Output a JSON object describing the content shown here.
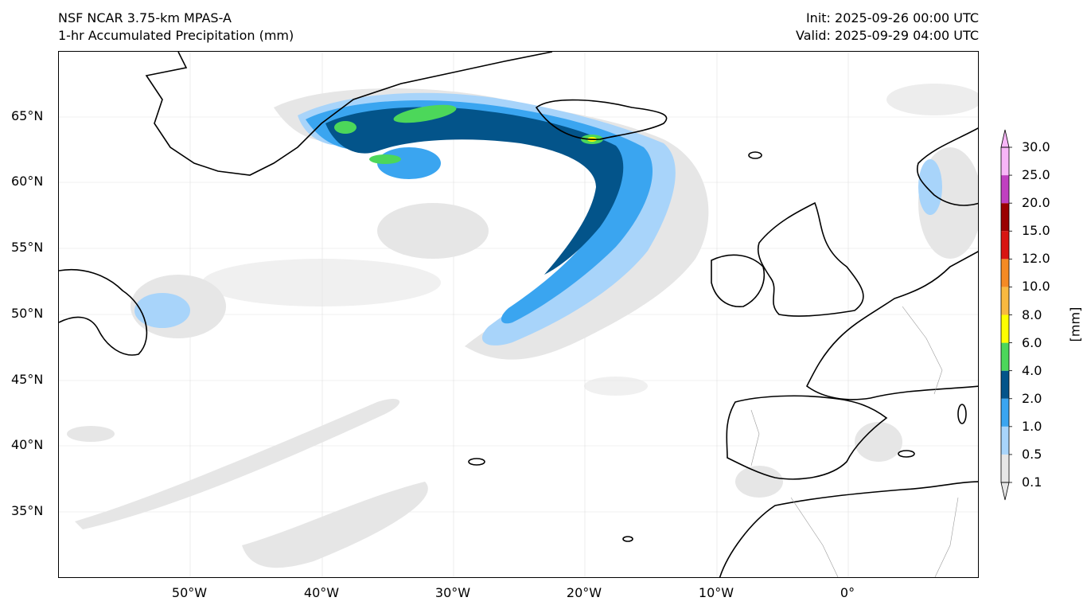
{
  "header": {
    "model": "NSF NCAR 3.75-km MPAS-A",
    "field": "1-hr Accumulated Precipitation (mm)",
    "init": "Init: 2025-09-26 00:00 UTC",
    "valid": "Valid: 2025-09-29 04:00 UTC"
  },
  "map": {
    "lon_ticks": [
      "50°W",
      "40°W",
      "30°W",
      "20°W",
      "10°W",
      "0°"
    ],
    "lat_ticks": [
      "65°N",
      "60°N",
      "55°N",
      "50°N",
      "45°N",
      "40°N",
      "35°N"
    ]
  },
  "colorbar": {
    "unit": "[mm]",
    "levels": [
      "0.1",
      "0.5",
      "1.0",
      "2.0",
      "4.0",
      "6.0",
      "8.0",
      "10.0",
      "12.0",
      "15.0",
      "20.0",
      "25.0",
      "30.0"
    ],
    "colors": [
      "#e6e6e6",
      "#a8d4fa",
      "#3aa5f0",
      "#03548a",
      "#4cd75a",
      "#fdff00",
      "#f8b940",
      "#f48a24",
      "#d81512",
      "#9a0000",
      "#c040c0",
      "#f7b6f7"
    ]
  }
}
